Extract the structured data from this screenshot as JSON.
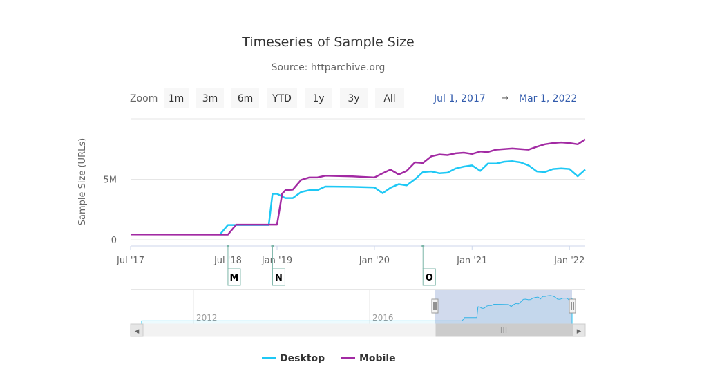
{
  "chart_data": {
    "type": "line",
    "title": "Timeseries of Sample Size",
    "subtitle": "Source: httparchive.org",
    "ylabel": "Sample Size (URLs)",
    "xlabel": "",
    "ylim": [
      0,
      10000000
    ],
    "xlim": [
      "2017-07-01",
      "2022-03-01"
    ],
    "x_ticks": [
      {
        "date": "2017-07-01",
        "label": "Jul '17"
      },
      {
        "date": "2018-07-01",
        "label": "Jul '18"
      },
      {
        "date": "2019-01-01",
        "label": "Jan '19"
      },
      {
        "date": "2020-01-01",
        "label": "Jan '20"
      },
      {
        "date": "2021-01-01",
        "label": "Jan '21"
      },
      {
        "date": "2022-01-01",
        "label": "Jan '22"
      }
    ],
    "y_ticks": [
      {
        "value": 0,
        "label": "0"
      },
      {
        "value": 5000000,
        "label": "5M"
      }
    ],
    "grid": true,
    "legend": "bottom-center",
    "series": [
      {
        "name": "Desktop",
        "color": "#1ec8f5",
        "points": [
          [
            "2017-07-01",
            440000
          ],
          [
            "2018-06-01",
            440000
          ],
          [
            "2018-07-01",
            1220000
          ],
          [
            "2018-12-01",
            1220000
          ],
          [
            "2018-12-15",
            3800000
          ],
          [
            "2019-01-01",
            3800000
          ],
          [
            "2019-02-01",
            3450000
          ],
          [
            "2019-03-01",
            3450000
          ],
          [
            "2019-04-01",
            3950000
          ],
          [
            "2019-05-01",
            4100000
          ],
          [
            "2019-06-01",
            4100000
          ],
          [
            "2019-07-01",
            4400000
          ],
          [
            "2019-10-01",
            4380000
          ],
          [
            "2020-01-01",
            4330000
          ],
          [
            "2020-02-01",
            3850000
          ],
          [
            "2020-03-01",
            4300000
          ],
          [
            "2020-04-01",
            4600000
          ],
          [
            "2020-05-01",
            4500000
          ],
          [
            "2020-06-01",
            5000000
          ],
          [
            "2020-07-01",
            5600000
          ],
          [
            "2020-08-01",
            5650000
          ],
          [
            "2020-09-01",
            5500000
          ],
          [
            "2020-10-01",
            5550000
          ],
          [
            "2020-11-01",
            5900000
          ],
          [
            "2020-12-01",
            6050000
          ],
          [
            "2021-01-01",
            6150000
          ],
          [
            "2021-02-01",
            5700000
          ],
          [
            "2021-03-01",
            6300000
          ],
          [
            "2021-04-01",
            6300000
          ],
          [
            "2021-05-01",
            6450000
          ],
          [
            "2021-06-01",
            6500000
          ],
          [
            "2021-07-01",
            6400000
          ],
          [
            "2021-08-01",
            6150000
          ],
          [
            "2021-09-01",
            5650000
          ],
          [
            "2021-10-01",
            5600000
          ],
          [
            "2021-11-01",
            5850000
          ],
          [
            "2021-12-01",
            5900000
          ],
          [
            "2022-01-01",
            5850000
          ],
          [
            "2022-02-01",
            5250000
          ],
          [
            "2022-03-01",
            5800000
          ]
        ]
      },
      {
        "name": "Mobile",
        "color": "#a22aa3",
        "points": [
          [
            "2017-07-01",
            440000
          ],
          [
            "2018-07-01",
            430000
          ],
          [
            "2018-08-01",
            1250000
          ],
          [
            "2019-01-01",
            1250000
          ],
          [
            "2019-01-20",
            3800000
          ],
          [
            "2019-02-01",
            4100000
          ],
          [
            "2019-03-01",
            4150000
          ],
          [
            "2019-04-01",
            4950000
          ],
          [
            "2019-05-01",
            5150000
          ],
          [
            "2019-06-01",
            5150000
          ],
          [
            "2019-07-01",
            5300000
          ],
          [
            "2019-10-01",
            5250000
          ],
          [
            "2020-01-01",
            5150000
          ],
          [
            "2020-02-01",
            5500000
          ],
          [
            "2020-03-01",
            5800000
          ],
          [
            "2020-04-01",
            5400000
          ],
          [
            "2020-05-01",
            5700000
          ],
          [
            "2020-06-01",
            6400000
          ],
          [
            "2020-07-01",
            6350000
          ],
          [
            "2020-08-01",
            6900000
          ],
          [
            "2020-09-01",
            7050000
          ],
          [
            "2020-10-01",
            7000000
          ],
          [
            "2020-11-01",
            7150000
          ],
          [
            "2020-12-01",
            7200000
          ],
          [
            "2021-01-01",
            7100000
          ],
          [
            "2021-02-01",
            7300000
          ],
          [
            "2021-03-01",
            7250000
          ],
          [
            "2021-04-01",
            7450000
          ],
          [
            "2021-05-01",
            7500000
          ],
          [
            "2021-06-01",
            7550000
          ],
          [
            "2021-07-01",
            7500000
          ],
          [
            "2021-08-01",
            7450000
          ],
          [
            "2021-09-01",
            7700000
          ],
          [
            "2021-10-01",
            7900000
          ],
          [
            "2021-11-01",
            8000000
          ],
          [
            "2021-12-01",
            8050000
          ],
          [
            "2022-01-01",
            8000000
          ],
          [
            "2022-02-01",
            7900000
          ],
          [
            "2022-03-01",
            8300000
          ]
        ]
      }
    ],
    "flags": [
      {
        "date": "2018-07-01",
        "label": "M"
      },
      {
        "date": "2018-12-15",
        "label": "N"
      },
      {
        "date": "2020-07-01",
        "label": "O"
      }
    ]
  },
  "range_selector": {
    "zoom_label": "Zoom",
    "buttons": [
      "1m",
      "3m",
      "6m",
      "YTD",
      "1y",
      "3y",
      "All"
    ],
    "from": "Jul 1, 2017",
    "arrow": "→",
    "to": "Mar 1, 2022"
  },
  "navigator": {
    "labels": [
      "2012",
      "2016"
    ],
    "handle_glyph": "III",
    "left_arrow": "◂",
    "right_arrow": "▸"
  },
  "colors": {
    "grid": "#e6e6e6",
    "navigator_mask": "rgba(102,133,194,0.3)",
    "button_bg": "#f7f7f7"
  }
}
